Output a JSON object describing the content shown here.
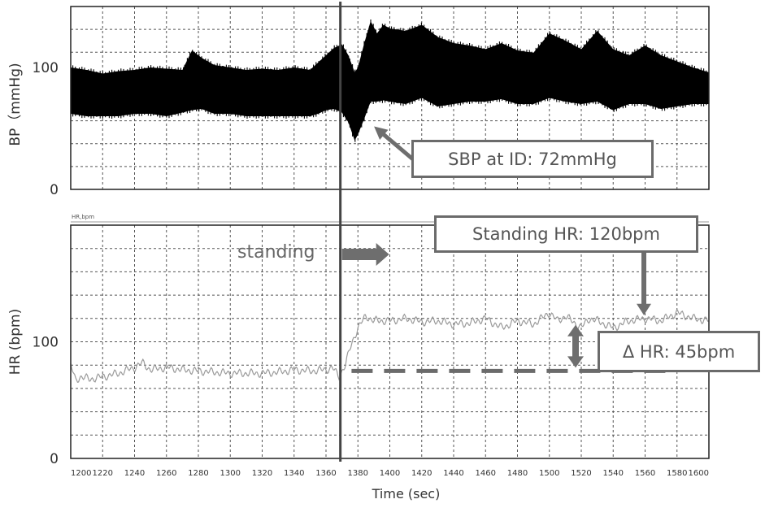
{
  "chart_data": [
    {
      "type": "line",
      "panel": "bp",
      "ylabel": "BP（mmHg)",
      "yticks": [
        {
          "value": 0,
          "label": "0"
        },
        {
          "value": 100,
          "label": "100"
        }
      ],
      "ylim": [
        0,
        150
      ],
      "xlim": [
        1200,
        1600
      ],
      "grid": true,
      "series": [
        {
          "kind": "pressure-waveform-envelope",
          "color": "#000000",
          "x": [
            1200,
            1210,
            1220,
            1230,
            1240,
            1250,
            1260,
            1270,
            1276,
            1282,
            1290,
            1300,
            1310,
            1320,
            1330,
            1340,
            1350,
            1355,
            1360,
            1365,
            1370,
            1374,
            1378,
            1380,
            1384,
            1388,
            1392,
            1396,
            1400,
            1410,
            1420,
            1430,
            1440,
            1450,
            1460,
            1470,
            1480,
            1490,
            1500,
            1510,
            1520,
            1530,
            1540,
            1550,
            1560,
            1570,
            1580,
            1590,
            1600
          ],
          "upper": [
            100,
            98,
            95,
            97,
            98,
            100,
            99,
            98,
            114,
            108,
            102,
            100,
            98,
            99,
            98,
            100,
            98,
            104,
            110,
            116,
            119,
            110,
            96,
            100,
            120,
            138,
            128,
            135,
            132,
            130,
            135,
            125,
            120,
            118,
            115,
            120,
            114,
            112,
            128,
            122,
            115,
            130,
            115,
            110,
            118,
            110,
            105,
            100,
            96
          ],
          "lower": [
            62,
            60,
            60,
            60,
            62,
            62,
            60,
            63,
            65,
            66,
            62,
            62,
            60,
            60,
            60,
            60,
            60,
            62,
            65,
            66,
            63,
            55,
            40,
            45,
            58,
            72,
            72,
            73,
            72,
            70,
            75,
            68,
            70,
            72,
            72,
            74,
            70,
            70,
            75,
            72,
            70,
            72,
            65,
            70,
            70,
            66,
            68,
            70,
            70
          ]
        }
      ]
    },
    {
      "type": "line",
      "panel": "hr",
      "ylabel": "HR (bpm)",
      "xlabel": "Time (sec)",
      "channel_label": "HR,bpm",
      "yticks": [
        {
          "value": 0,
          "label": "0"
        },
        {
          "value": 100,
          "label": "100"
        }
      ],
      "ylim": [
        0,
        200
      ],
      "xlim": [
        1200,
        1600
      ],
      "xticks": [
        {
          "value": 1200,
          "label": "1200"
        },
        {
          "value": 1220,
          "label": "1220"
        },
        {
          "value": 1240,
          "label": "1240"
        },
        {
          "value": 1260,
          "label": "1260"
        },
        {
          "value": 1280,
          "label": "1280"
        },
        {
          "value": 1300,
          "label": "1300"
        },
        {
          "value": 1320,
          "label": "1320"
        },
        {
          "value": 1340,
          "label": "1340"
        },
        {
          "value": 1360,
          "label": "1360"
        },
        {
          "value": 1380,
          "label": "1380"
        },
        {
          "value": 1400,
          "label": "1400"
        },
        {
          "value": 1420,
          "label": "1420"
        },
        {
          "value": 1440,
          "label": "1440"
        },
        {
          "value": 1460,
          "label": "1460"
        },
        {
          "value": 1480,
          "label": "1480"
        },
        {
          "value": 1500,
          "label": "1500"
        },
        {
          "value": 1520,
          "label": "1520"
        },
        {
          "value": 1540,
          "label": "1540"
        },
        {
          "value": 1560,
          "label": "1560"
        },
        {
          "value": 1580,
          "label": "1580"
        },
        {
          "value": 1600,
          "label": "1600"
        }
      ],
      "grid": true,
      "series": [
        {
          "kind": "heart-rate",
          "color": "#9a9a9a",
          "x": [
            1200,
            1203,
            1206,
            1212,
            1220,
            1230,
            1240,
            1245,
            1250,
            1260,
            1270,
            1280,
            1290,
            1300,
            1310,
            1320,
            1330,
            1340,
            1350,
            1360,
            1364,
            1368,
            1372,
            1376,
            1380,
            1385,
            1390,
            1400,
            1410,
            1420,
            1430,
            1440,
            1450,
            1460,
            1470,
            1480,
            1490,
            1500,
            1505,
            1510,
            1520,
            1525,
            1530,
            1540,
            1550,
            1560,
            1570,
            1580,
            1590,
            1600
          ],
          "y": [
            80,
            67,
            70,
            68,
            70,
            73,
            78,
            82,
            76,
            78,
            76,
            75,
            74,
            73,
            73,
            73,
            74,
            76,
            75,
            76,
            78,
            70,
            80,
            98,
            112,
            122,
            118,
            118,
            120,
            117,
            118,
            115,
            116,
            120,
            112,
            118,
            115,
            125,
            118,
            122,
            112,
            120,
            118,
            112,
            118,
            120,
            118,
            125,
            120,
            118
          ]
        }
      ],
      "reference_lines": [
        {
          "kind": "baseline-dashed",
          "y": 75,
          "x_from": 1376,
          "x_to": 1578
        }
      ]
    }
  ],
  "annotations": {
    "event_x": 1369,
    "standing_label": "standing",
    "sbp_label": "SBP at ID: 72mmHg",
    "standing_hr_label": "Standing HR: 120bpm",
    "delta_hr_label": "Δ HR: 45bpm",
    "sbp_target": {
      "x": 1384,
      "y": 45
    },
    "standing_hr_value": 120,
    "delta_hr_from": 75,
    "delta_hr_to": 120
  },
  "colors": {
    "waveform": "#000000",
    "hr_trace": "#9a9a9a",
    "annotation": "#6b6b6b",
    "grid": "#555555",
    "event_line": "#444444"
  }
}
